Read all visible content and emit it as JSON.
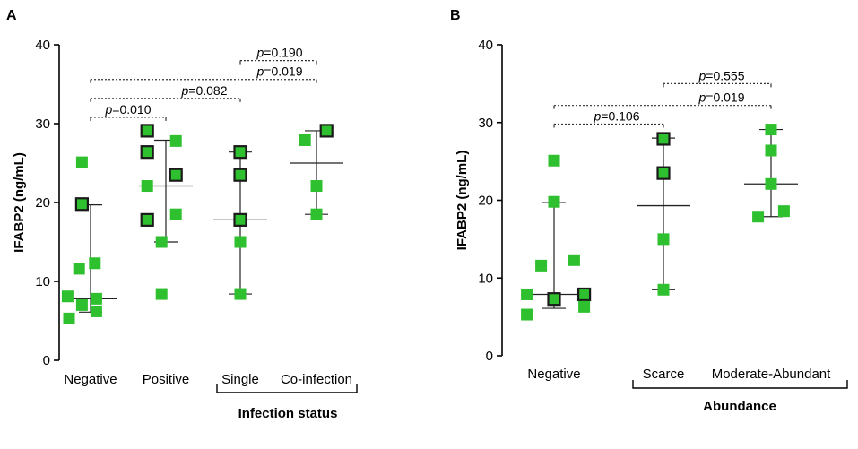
{
  "chart_data": [
    {
      "panel": "A",
      "type": "scatter",
      "ylabel": "IFABP2 (ng/mL)",
      "ylim": [
        0,
        40
      ],
      "yticks": [
        0,
        10,
        20,
        30,
        40
      ],
      "categories": [
        "Negative",
        "Positive",
        "Single",
        "Co-infection"
      ],
      "group_label": "Infection status",
      "group_span": [
        "Single",
        "Co-infection"
      ],
      "colors": {
        "fill": "#2ec02e",
        "edge": "#1a1a1a"
      },
      "series": [
        {
          "name": "Negative",
          "points": [
            {
              "y": 25.1,
              "dx": -0.12,
              "outlined": false
            },
            {
              "y": 19.8,
              "dx": -0.12,
              "outlined": true
            },
            {
              "y": 12.3,
              "dx": 0.06,
              "outlined": false
            },
            {
              "y": 11.6,
              "dx": -0.16,
              "outlined": false
            },
            {
              "y": 8.1,
              "dx": -0.32,
              "outlined": false
            },
            {
              "y": 7.8,
              "dx": 0.08,
              "outlined": false
            },
            {
              "y": 7.0,
              "dx": -0.12,
              "outlined": false
            },
            {
              "y": 6.2,
              "dx": 0.08,
              "outlined": false
            },
            {
              "y": 5.3,
              "dx": -0.3,
              "outlined": false
            }
          ],
          "median": 7.8,
          "lower": 6.1,
          "upper": 19.7
        },
        {
          "name": "Positive",
          "points": [
            {
              "y": 29.1,
              "dx": -0.26,
              "outlined": true
            },
            {
              "y": 27.8,
              "dx": 0.14,
              "outlined": false
            },
            {
              "y": 26.4,
              "dx": -0.26,
              "outlined": true
            },
            {
              "y": 23.5,
              "dx": 0.14,
              "outlined": true
            },
            {
              "y": 22.1,
              "dx": -0.26,
              "outlined": false
            },
            {
              "y": 18.5,
              "dx": 0.14,
              "outlined": false
            },
            {
              "y": 17.8,
              "dx": -0.26,
              "outlined": true
            },
            {
              "y": 15.0,
              "dx": -0.06,
              "outlined": false
            },
            {
              "y": 8.4,
              "dx": -0.06,
              "outlined": false
            }
          ],
          "median": 22.1,
          "lower": 15.0,
          "upper": 27.9
        },
        {
          "name": "Single",
          "points": [
            {
              "y": 26.4,
              "dx": 0.0,
              "outlined": true
            },
            {
              "y": 23.5,
              "dx": 0.0,
              "outlined": true
            },
            {
              "y": 17.8,
              "dx": 0.0,
              "outlined": true
            },
            {
              "y": 15.0,
              "dx": 0.0,
              "outlined": false
            },
            {
              "y": 8.4,
              "dx": 0.0,
              "outlined": false
            }
          ],
          "median": 17.8,
          "lower": 8.4,
          "upper": 26.4
        },
        {
          "name": "Co-infection",
          "points": [
            {
              "y": 29.1,
              "dx": 0.14,
              "outlined": true
            },
            {
              "y": 27.9,
              "dx": -0.16,
              "outlined": false
            },
            {
              "y": 22.1,
              "dx": 0.0,
              "outlined": false
            },
            {
              "y": 18.5,
              "dx": 0.0,
              "outlined": false
            }
          ],
          "median": 25.0,
          "lower": 18.5,
          "upper": 29.1
        }
      ],
      "comparisons": [
        {
          "from": "Negative",
          "to": "Positive",
          "p_label": "p",
          "p_value": "=0.010",
          "y": 30.8
        },
        {
          "from": "Negative",
          "to": "Single",
          "p_label": "p",
          "p_value": "=0.082",
          "y": 33.2
        },
        {
          "from": "Negative",
          "to": "Co-infection",
          "p_label": "p",
          "p_value": "=0.019",
          "y": 35.6
        },
        {
          "from": "Single",
          "to": "Co-infection",
          "p_label": "p",
          "p_value": "=0.190",
          "y": 38.0
        }
      ]
    },
    {
      "panel": "B",
      "type": "scatter",
      "ylabel": "IFABP2 (ng/mL)",
      "ylim": [
        0,
        40
      ],
      "yticks": [
        0,
        10,
        20,
        30,
        40
      ],
      "categories": [
        "Negative",
        "Scarce",
        "Moderate-Abundant"
      ],
      "group_label": "Abundance",
      "group_span": [
        "Scarce",
        "Moderate-Abundant"
      ],
      "colors": {
        "fill": "#2ec02e",
        "edge": "#1a1a1a"
      },
      "series": [
        {
          "name": "Negative",
          "points": [
            {
              "y": 25.1,
              "dx": 0.0,
              "outlined": false
            },
            {
              "y": 19.8,
              "dx": 0.0,
              "outlined": false
            },
            {
              "y": 12.3,
              "dx": 0.28,
              "outlined": false
            },
            {
              "y": 11.6,
              "dx": -0.18,
              "outlined": false
            },
            {
              "y": 7.9,
              "dx": -0.38,
              "outlined": false
            },
            {
              "y": 7.9,
              "dx": 0.42,
              "outlined": true
            },
            {
              "y": 7.3,
              "dx": 0.0,
              "outlined": true
            },
            {
              "y": 6.3,
              "dx": 0.42,
              "outlined": false
            },
            {
              "y": 5.3,
              "dx": -0.38,
              "outlined": false
            }
          ],
          "median": 7.9,
          "lower": 6.1,
          "upper": 19.7
        },
        {
          "name": "Scarce",
          "points": [
            {
              "y": 27.9,
              "dx": 0.0,
              "outlined": true
            },
            {
              "y": 23.5,
              "dx": 0.0,
              "outlined": true
            },
            {
              "y": 15.0,
              "dx": 0.0,
              "outlined": false
            },
            {
              "y": 8.5,
              "dx": 0.0,
              "outlined": false
            }
          ],
          "median": 19.3,
          "lower": 8.5,
          "upper": 28.0
        },
        {
          "name": "Moderate-Abundant",
          "points": [
            {
              "y": 29.1,
              "dx": 0.0,
              "outlined": false
            },
            {
              "y": 26.4,
              "dx": 0.0,
              "outlined": false
            },
            {
              "y": 22.1,
              "dx": 0.0,
              "outlined": false
            },
            {
              "y": 18.6,
              "dx": 0.18,
              "outlined": false
            },
            {
              "y": 17.9,
              "dx": -0.18,
              "outlined": false
            }
          ],
          "median": 22.1,
          "lower": 17.9,
          "upper": 29.1
        }
      ],
      "comparisons": [
        {
          "from": "Negative",
          "to": "Scarce",
          "p_label": "p",
          "p_value": "=0.106",
          "y": 29.8
        },
        {
          "from": "Negative",
          "to": "Moderate-Abundant",
          "p_label": "p",
          "p_value": "=0.019",
          "y": 32.2
        },
        {
          "from": "Scarce",
          "to": "Moderate-Abundant",
          "p_label": "p",
          "p_value": "=0.555",
          "y": 35.0
        }
      ]
    }
  ]
}
